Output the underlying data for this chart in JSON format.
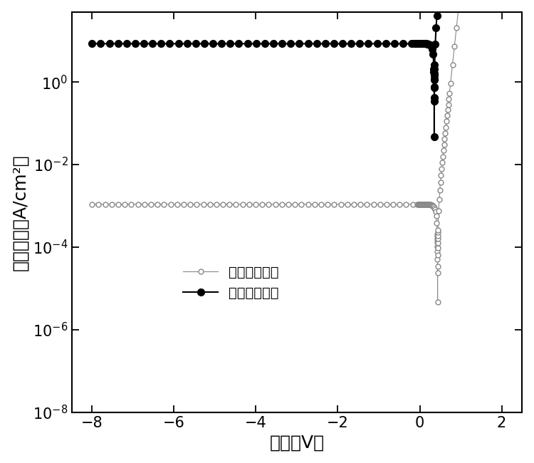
{
  "xlabel": "电压（V）",
  "ylabel": "电流密度（A/cm²）",
  "xlim": [
    -8.5,
    2.5
  ],
  "background_color": "#ffffff",
  "legend_labels": [
    "无紫外光照射",
    "有紫外光照射"
  ],
  "curve_no_uv": {
    "color": "#888888",
    "marker": "o",
    "markerfacecolor": "white",
    "markeredgecolor": "#888888",
    "markersize": 5,
    "linewidth": 0.8
  },
  "curve_uv": {
    "color": "#000000",
    "marker": "o",
    "markerfacecolor": "black",
    "markeredgecolor": "black",
    "markersize": 7,
    "linewidth": 1.5
  }
}
